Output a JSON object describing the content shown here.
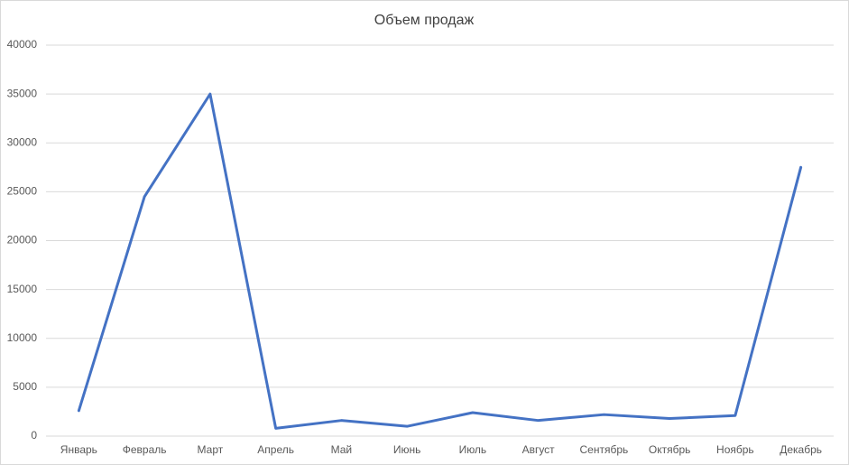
{
  "chart_data": {
    "type": "line",
    "title": "Объем продаж",
    "categories": [
      "Январь",
      "Февраль",
      "Март",
      "Апрель",
      "Май",
      "Июнь",
      "Июль",
      "Август",
      "Сентябрь",
      "Октябрь",
      "Ноябрь",
      "Декабрь"
    ],
    "series": [
      {
        "name": "Объем продаж",
        "color": "#4472c4",
        "values": [
          2600,
          24500,
          35000,
          800,
          1600,
          1000,
          2400,
          1600,
          2200,
          1800,
          2100,
          27500
        ]
      }
    ],
    "ylim": [
      0,
      40000
    ],
    "yticks": [
      0,
      5000,
      10000,
      15000,
      20000,
      25000,
      30000,
      35000,
      40000
    ],
    "grid": true
  }
}
